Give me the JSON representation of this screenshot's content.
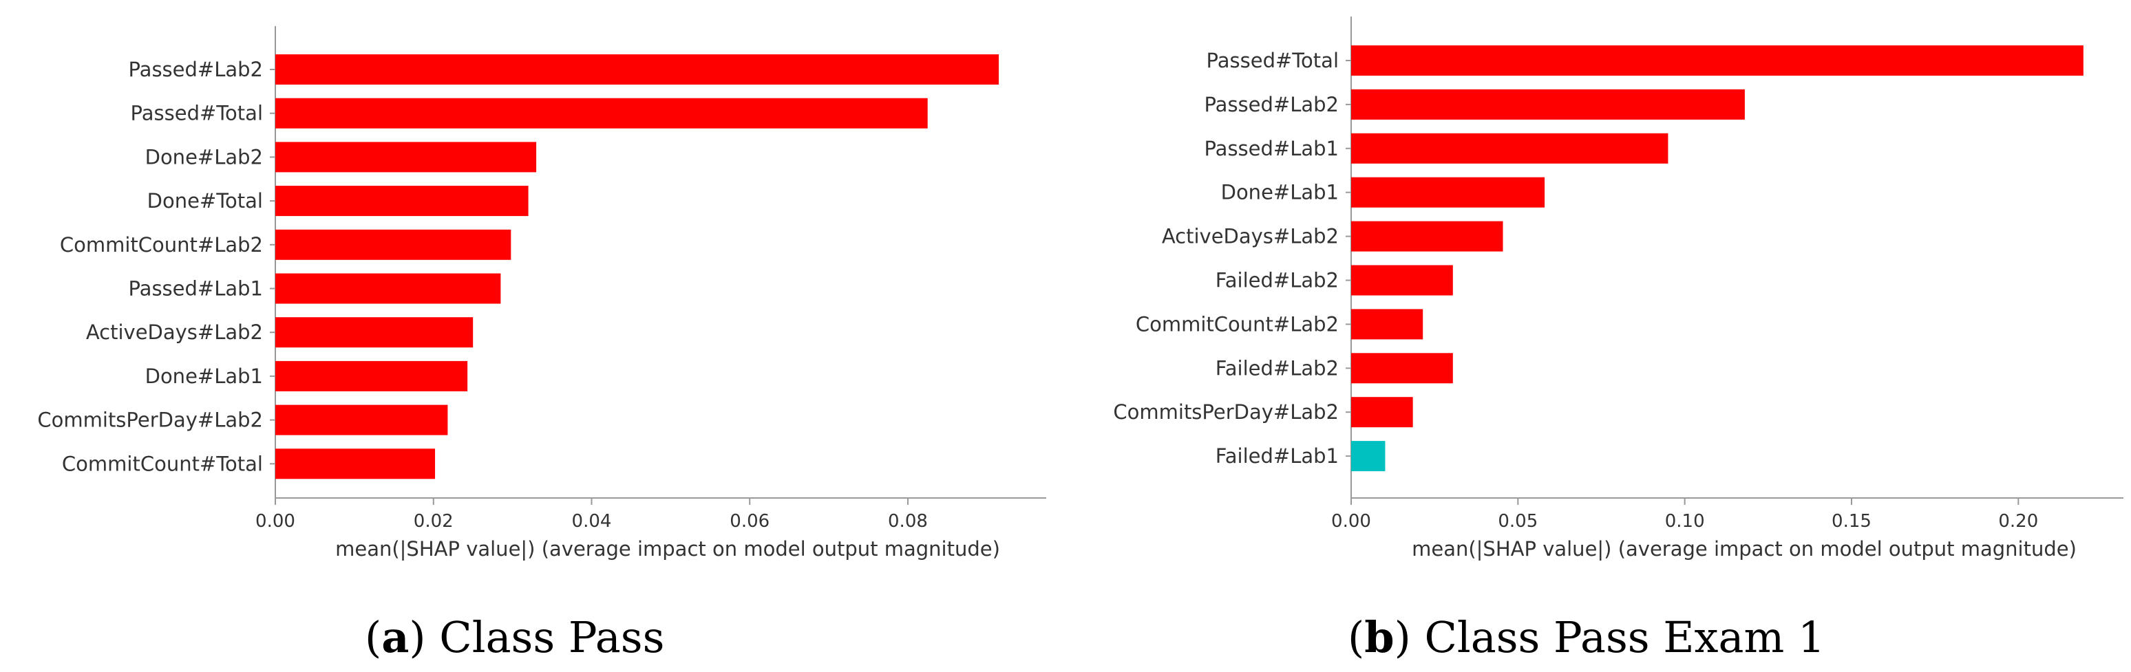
{
  "chart_data": [
    {
      "type": "bar",
      "orientation": "horizontal",
      "caption_letter": "a",
      "caption_text": "Class Pass",
      "categories": [
        "Passed#Lab2",
        "Passed#Total",
        "Done#Lab2",
        "Done#Total",
        "CommitCount#Lab2",
        "Passed#Lab1",
        "ActiveDays#Lab2",
        "Done#Lab1",
        "CommitsPerDay#Lab2",
        "CommitCount#Total"
      ],
      "values": [
        0.0915,
        0.0825,
        0.033,
        0.032,
        0.0298,
        0.0285,
        0.025,
        0.0243,
        0.0218,
        0.0202
      ],
      "colors": [
        "#ff0000",
        "#ff0000",
        "#ff0000",
        "#ff0000",
        "#ff0000",
        "#ff0000",
        "#ff0000",
        "#ff0000",
        "#ff0000",
        "#ff0000"
      ],
      "xlim": [
        0,
        0.0975
      ],
      "xticks": [
        0,
        0.02,
        0.04,
        0.06,
        0.08
      ],
      "xtick_labels": [
        "0.00",
        "0.02",
        "0.04",
        "0.06",
        "0.08"
      ],
      "xlabel": "mean(|SHAP value|) (average impact on model output magnitude)"
    },
    {
      "type": "bar",
      "orientation": "horizontal",
      "caption_letter": "b",
      "caption_text": "Class Pass Exam 1",
      "categories": [
        "Passed#Total",
        "Passed#Lab2",
        "Passed#Lab1",
        "Done#Lab1",
        "ActiveDays#Lab2",
        "Failed#Lab2",
        "CommitCount#Lab2",
        "Failed#Lab2",
        "CommitsPerDay#Lab2",
        "Failed#Lab1"
      ],
      "values": [
        0.2195,
        0.118,
        0.095,
        0.058,
        0.0455,
        0.0305,
        0.0215,
        0.0305,
        0.0185,
        0.0102
      ],
      "colors": [
        "#ff0000",
        "#ff0000",
        "#ff0000",
        "#ff0000",
        "#ff0000",
        "#ff0000",
        "#ff0000",
        "#ff0000",
        "#ff0000",
        "#00c0c0"
      ],
      "xlim": [
        0,
        0.2315
      ],
      "xticks": [
        0,
        0.05,
        0.1,
        0.15,
        0.2
      ],
      "xtick_labels": [
        "0.00",
        "0.05",
        "0.10",
        "0.15",
        "0.20"
      ],
      "xlabel": "mean(|SHAP value|) (average impact on model output magnitude)"
    }
  ]
}
